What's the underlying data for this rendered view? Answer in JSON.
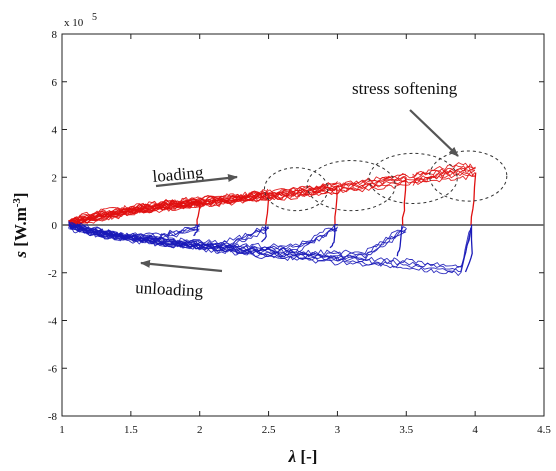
{
  "chart_data": {
    "type": "line",
    "title": "",
    "xlabel_main": "λ",
    "xlabel_unit": " [-]",
    "ylabel_main": "s",
    "ylabel_unit": " [W.m",
    "ylabel_sup": "-3",
    "ylabel_close": "]",
    "y_multiplier_text": "x 10",
    "y_multiplier_exp": "5",
    "xlim": [
      1,
      4.5
    ],
    "ylim": [
      -8,
      8
    ],
    "xticks": [
      1,
      1.5,
      2,
      2.5,
      3,
      3.5,
      4,
      4.5
    ],
    "xtick_labels": [
      "1",
      "1.5",
      "2",
      "2.5",
      "3",
      "3.5",
      "4",
      "4.5"
    ],
    "yticks": [
      -8,
      -6,
      -4,
      -2,
      0,
      2,
      4,
      6,
      8
    ],
    "ytick_labels": [
      "-8",
      "-6",
      "-4",
      "-2",
      "0",
      "2",
      "4",
      "6",
      "8"
    ],
    "grid": false,
    "zero_line": true,
    "series": [
      {
        "color": "#e01010",
        "segments": [
          [
            [
              1.05,
              0.1
            ],
            [
              1.2,
              0.4
            ],
            [
              1.5,
              0.65
            ],
            [
              1.8,
              0.9
            ],
            [
              2.0,
              1.0
            ]
          ],
          [
            [
              1.05,
              0.1
            ],
            [
              1.3,
              0.5
            ],
            [
              1.7,
              0.8
            ],
            [
              2.1,
              1.05
            ],
            [
              2.3,
              1.15
            ],
            [
              2.5,
              1.3
            ]
          ],
          [
            [
              1.05,
              0.05
            ],
            [
              1.4,
              0.55
            ],
            [
              1.9,
              0.9
            ],
            [
              2.4,
              1.2
            ],
            [
              2.7,
              1.35
            ],
            [
              3.0,
              1.65
            ]
          ],
          [
            [
              1.05,
              0.05
            ],
            [
              1.5,
              0.6
            ],
            [
              2.0,
              0.95
            ],
            [
              2.5,
              1.25
            ],
            [
              3.0,
              1.55
            ],
            [
              3.2,
              1.75
            ],
            [
              3.5,
              2.0
            ]
          ],
          [
            [
              1.05,
              0.05
            ],
            [
              1.5,
              0.55
            ],
            [
              2.0,
              0.9
            ],
            [
              2.5,
              1.2
            ],
            [
              3.0,
              1.5
            ],
            [
              3.5,
              1.85
            ],
            [
              3.7,
              2.05
            ],
            [
              4.0,
              2.2
            ]
          ],
          [
            [
              3.55,
              1.9
            ],
            [
              3.7,
              2.15
            ],
            [
              3.9,
              2.4
            ],
            [
              4.0,
              2.25
            ]
          ]
        ],
        "drops": [
          [
            [
              2.0,
              1.0
            ],
            [
              1.99,
              0.4
            ],
            [
              1.98,
              0.0
            ]
          ],
          [
            [
              2.5,
              1.3
            ],
            [
              2.49,
              0.5
            ],
            [
              2.48,
              0.0
            ]
          ],
          [
            [
              3.0,
              1.65
            ],
            [
              2.99,
              0.7
            ],
            [
              2.98,
              0.0
            ]
          ],
          [
            [
              3.5,
              2.0
            ],
            [
              3.49,
              0.9
            ],
            [
              3.47,
              0.0
            ]
          ],
          [
            [
              4.0,
              2.2
            ],
            [
              3.99,
              1.0
            ],
            [
              3.97,
              0.0
            ]
          ]
        ]
      },
      {
        "color": "#1a1ab8",
        "segments": [
          [
            [
              2.0,
              -0.1
            ],
            [
              1.7,
              -0.5
            ],
            [
              1.4,
              -0.5
            ],
            [
              1.1,
              -0.15
            ],
            [
              1.05,
              0.0
            ]
          ],
          [
            [
              2.5,
              -0.1
            ],
            [
              2.2,
              -0.8
            ],
            [
              1.8,
              -0.75
            ],
            [
              1.4,
              -0.45
            ],
            [
              1.05,
              0.0
            ]
          ],
          [
            [
              3.0,
              -0.1
            ],
            [
              2.7,
              -1.0
            ],
            [
              2.2,
              -0.95
            ],
            [
              1.7,
              -0.7
            ],
            [
              1.2,
              -0.25
            ],
            [
              1.05,
              0.0
            ]
          ],
          [
            [
              3.5,
              -0.1
            ],
            [
              3.2,
              -1.3
            ],
            [
              2.7,
              -1.25
            ],
            [
              2.2,
              -1.0
            ],
            [
              1.7,
              -0.7
            ],
            [
              1.2,
              -0.3
            ],
            [
              1.05,
              0.0
            ]
          ],
          [
            [
              3.97,
              -0.1
            ],
            [
              3.9,
              -1.9
            ],
            [
              3.5,
              -1.65
            ],
            [
              3.0,
              -1.45
            ],
            [
              2.5,
              -1.2
            ],
            [
              2.0,
              -0.9
            ],
            [
              1.5,
              -0.55
            ],
            [
              1.05,
              0.0
            ]
          ]
        ],
        "drops": [
          [
            [
              1.98,
              0.0
            ],
            [
              1.98,
              -0.3
            ],
            [
              1.95,
              -0.45
            ]
          ],
          [
            [
              2.48,
              0.0
            ],
            [
              2.48,
              -0.5
            ],
            [
              2.45,
              -0.7
            ]
          ],
          [
            [
              2.98,
              0.0
            ],
            [
              2.98,
              -0.7
            ],
            [
              2.95,
              -0.95
            ]
          ],
          [
            [
              3.47,
              0.0
            ],
            [
              3.46,
              -0.9
            ],
            [
              3.43,
              -1.3
            ]
          ],
          [
            [
              3.97,
              0.0
            ],
            [
              3.98,
              -1.2
            ],
            [
              3.93,
              -1.95
            ]
          ]
        ]
      }
    ],
    "annotations": {
      "loading": "loading",
      "unloading": "unloading",
      "stress_softening": "stress softening"
    },
    "ellipses": [
      {
        "cx": 2.7,
        "cy": 1.5,
        "rx": 0.23,
        "ry": 0.9
      },
      {
        "cx": 3.1,
        "cy": 1.65,
        "rx": 0.32,
        "ry": 1.05
      },
      {
        "cx": 3.55,
        "cy": 1.95,
        "rx": 0.32,
        "ry": 1.05
      },
      {
        "cx": 3.95,
        "cy": 2.05,
        "rx": 0.28,
        "ry": 1.05
      }
    ]
  }
}
